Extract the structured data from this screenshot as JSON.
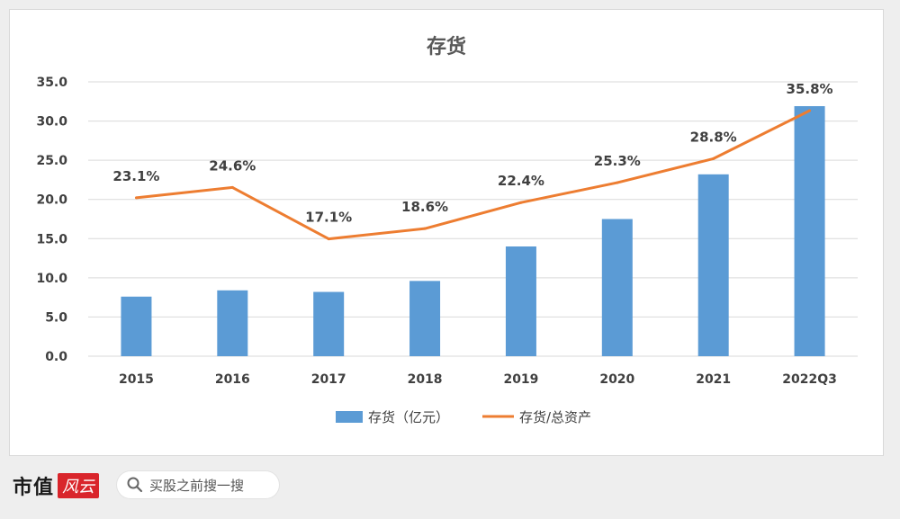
{
  "chart_data": {
    "type": "bar+line",
    "title": "存货",
    "categories": [
      "2015",
      "2016",
      "2017",
      "2018",
      "2019",
      "2020",
      "2021",
      "2022Q3"
    ],
    "series": [
      {
        "name": "存货（亿元）",
        "type": "bar",
        "color": "#5b9bd5",
        "values": [
          7.6,
          8.4,
          8.2,
          9.6,
          14.0,
          17.5,
          23.2,
          31.9
        ]
      },
      {
        "name": "存货/总资产",
        "type": "line",
        "color": "#ed7d31",
        "values": [
          23.1,
          24.6,
          17.1,
          18.6,
          22.4,
          25.3,
          28.8,
          35.8
        ],
        "data_labels": [
          "23.1%",
          "24.6%",
          "17.1%",
          "18.6%",
          "22.4%",
          "25.3%",
          "28.8%",
          "35.8%"
        ]
      }
    ],
    "y_ticks": [
      "0.0",
      "5.0",
      "10.0",
      "15.0",
      "20.0",
      "25.0",
      "30.0",
      "35.0"
    ],
    "ylim": [
      0,
      35
    ],
    "line_axis_range_percent": [
      0,
      40
    ],
    "grid": true,
    "legend": "bottom"
  },
  "footer": {
    "brand": "市值",
    "brand_mark": "风云",
    "search_text": "买股之前搜一搜"
  }
}
